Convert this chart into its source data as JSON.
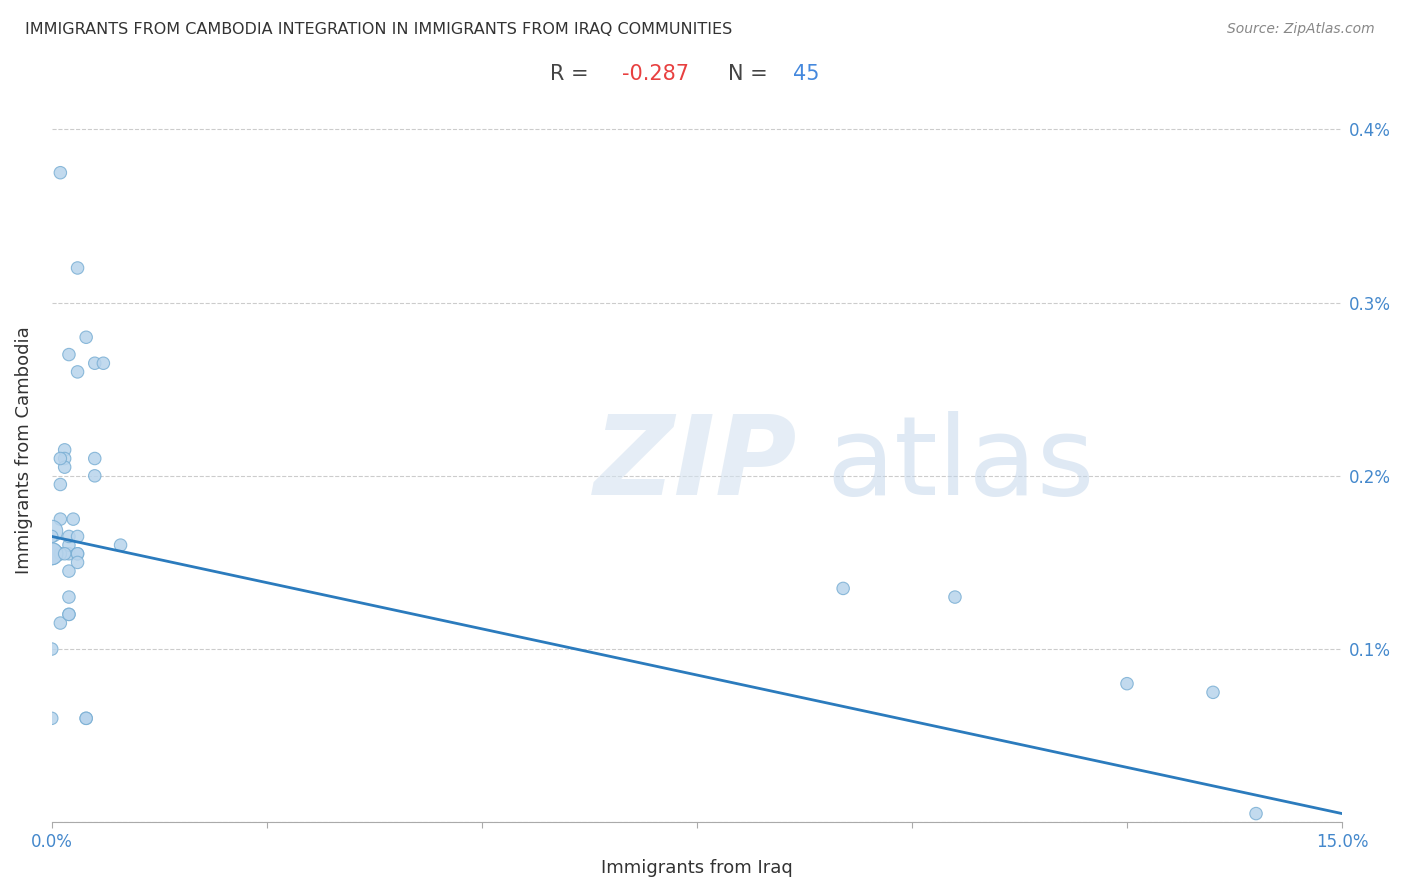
{
  "title": "IMMIGRANTS FROM CAMBODIA INTEGRATION IN IMMIGRANTS FROM IRAQ COMMUNITIES",
  "source": "Source: ZipAtlas.com",
  "xlabel": "Immigrants from Iraq",
  "ylabel": "Immigrants from Cambodia",
  "R": -0.287,
  "N": 45,
  "xlim": [
    0,
    0.15
  ],
  "ylim": [
    0,
    0.0043
  ],
  "xtick_positions": [
    0.0,
    0.025,
    0.05,
    0.075,
    0.1,
    0.125,
    0.15
  ],
  "xtick_labels": [
    "0.0%",
    "",
    "",
    "",
    "",
    "",
    "15.0%"
  ],
  "ytick_positions": [
    0.0,
    0.001,
    0.002,
    0.003,
    0.004
  ],
  "ytick_labels_right": [
    "",
    "0.1%",
    "0.2%",
    "0.3%",
    "0.4%"
  ],
  "scatter_color": "#b8d4ec",
  "scatter_edge_color": "#7aafd4",
  "line_color": "#2b7bbd",
  "title_color": "#333333",
  "annotation_R_color": "#e84040",
  "annotation_N_color": "#4488dd",
  "line_y_start": 0.00165,
  "line_y_end": 5e-05,
  "points_x": [
    0.001,
    0.004,
    0.003,
    0.002,
    0.0015,
    0.0015,
    0.0015,
    0.001,
    0.001,
    0.003,
    0.0025,
    0.005,
    0.006,
    0.005,
    0.005,
    0.002,
    0.002,
    0.002,
    0.003,
    0.003,
    0.003,
    0.002,
    0.001,
    0.001,
    0.001,
    0.001,
    0.0,
    0.0,
    0.0,
    0.0,
    0.0015,
    0.0,
    0.002,
    0.002,
    0.002,
    0.003,
    0.004,
    0.004,
    0.008,
    0.0,
    0.092,
    0.105,
    0.125,
    0.14,
    0.135
  ],
  "points_y": [
    0.00375,
    0.0028,
    0.0032,
    0.0027,
    0.00215,
    0.0021,
    0.00205,
    0.0021,
    0.00195,
    0.0026,
    0.00175,
    0.00265,
    0.00265,
    0.0021,
    0.002,
    0.00155,
    0.0016,
    0.00145,
    0.00155,
    0.00155,
    0.0015,
    0.00165,
    0.00175,
    0.00155,
    0.00155,
    0.00115,
    0.00168,
    0.00155,
    0.00155,
    0.001,
    0.00155,
    0.00165,
    0.0013,
    0.0012,
    0.0012,
    0.00165,
    0.0006,
    0.0006,
    0.0016,
    0.0006,
    0.00135,
    0.0013,
    0.0008,
    5e-05,
    0.00075
  ],
  "sizes": [
    80,
    80,
    80,
    80,
    80,
    80,
    80,
    80,
    80,
    80,
    80,
    80,
    80,
    80,
    80,
    80,
    80,
    80,
    80,
    80,
    80,
    80,
    80,
    80,
    80,
    80,
    250,
    250,
    250,
    80,
    80,
    80,
    80,
    80,
    80,
    80,
    80,
    80,
    80,
    80,
    80,
    80,
    80,
    80,
    80
  ]
}
